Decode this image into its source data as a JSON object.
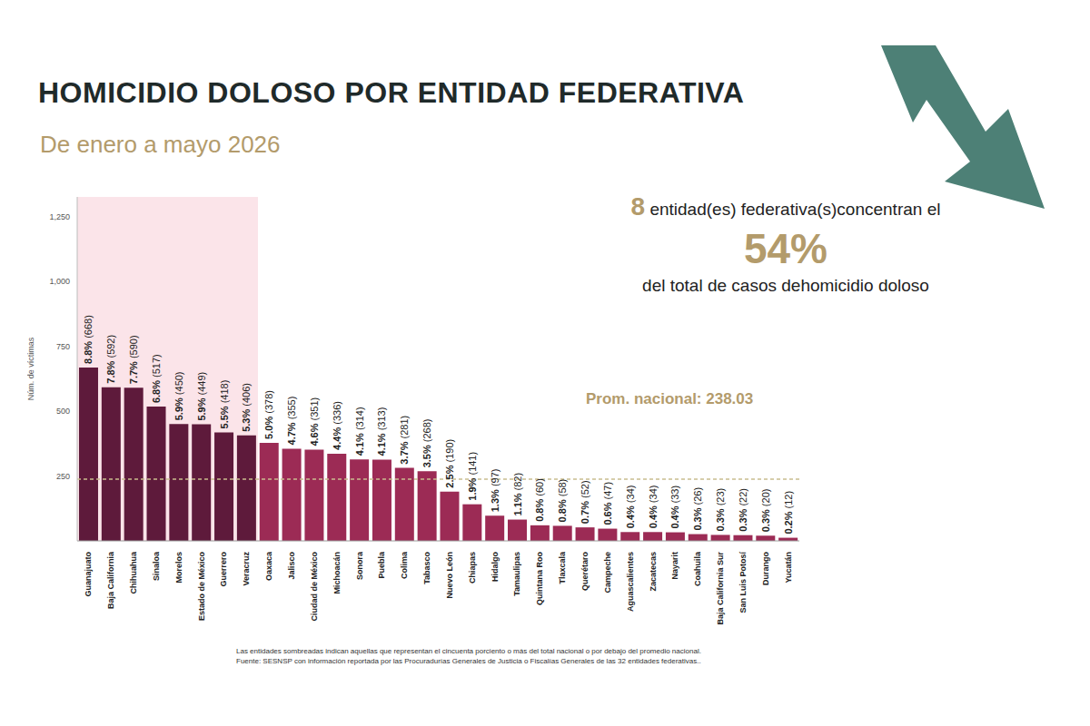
{
  "chart_data": {
    "type": "bar",
    "title": "HOMICIDIO DOLOSO POR ENTIDAD FEDERATIVA",
    "subtitle": "De enero a mayo 2026",
    "y_label": "Núm. de víctimas",
    "categories": [
      "Guanajuato",
      "Baja California",
      "Chihuahua",
      "Sinaloa",
      "Morelos",
      "Estado de México",
      "Guerrero",
      "Veracruz",
      "Oaxaca",
      "Jalisco",
      "Ciudad de México",
      "Michoacán",
      "Sonora",
      "Puebla",
      "Colima",
      "Tabasco",
      "Nuevo León",
      "Chiapas",
      "Hidalgo",
      "Tamaulipas",
      "Quintana Roo",
      "Tlaxcala",
      "Querétaro",
      "Campeche",
      "Aguascalientes",
      "Zacatecas",
      "Nayarit",
      "Coahuila",
      "Baja California Sur",
      "San Luis Potosí",
      "Durango",
      "Yucatán"
    ],
    "values": [
      668,
      592,
      590,
      517,
      450,
      449,
      418,
      406,
      378,
      355,
      351,
      336,
      314,
      313,
      281,
      268,
      190,
      141,
      97,
      82,
      60,
      58,
      52,
      47,
      34,
      34,
      33,
      26,
      23,
      22,
      20,
      12
    ],
    "value_labels": [
      "8.8% (668)",
      "7.8% (592)",
      "7.7% (590)",
      "6.8% (517)",
      "5.9% (450)",
      "5.9% (449)",
      "5.5% (418)",
      "5.3% (406)",
      "5.0% (378)",
      "4.7% (355)",
      "4.6% (351)",
      "4.4% (336)",
      "4.1% (314)",
      "4.1% (313)",
      "3.7% (281)",
      "3.5% (268)",
      "2.5% (190)",
      "1.9% (141)",
      "1.3% (97)",
      "1.1% (82)",
      "0.8% (60)",
      "0.8% (58)",
      "0.7% (52)",
      "0.6% (47)",
      "0.4% (34)",
      "0.4% (34)",
      "0.4% (33)",
      "0.3% (26)",
      "0.3% (23)",
      "0.3% (22)",
      "0.3% (20)",
      "0.2% (12)"
    ],
    "colors": [
      "#5e1a3b",
      "#5e1a3b",
      "#5e1a3b",
      "#5e1a3b",
      "#5e1a3b",
      "#5e1a3b",
      "#5e1a3b",
      "#5e1a3b",
      "#9c2b55",
      "#9c2b55",
      "#9c2b55",
      "#9c2b55",
      "#9c2b55",
      "#9c2b55",
      "#9c2b55",
      "#9c2b55",
      "#9c2b55",
      "#9c2b55",
      "#9c2b55",
      "#9c2b55",
      "#9c2b55",
      "#9c2b55",
      "#9c2b55",
      "#9c2b55",
      "#9c2b55",
      "#9c2b55",
      "#9c2b55",
      "#9c2b55",
      "#9c2b55",
      "#9c2b55",
      "#9c2b55",
      "#9c2b55"
    ],
    "ylim": [
      0,
      1325
    ],
    "yticks": [
      250,
      500,
      750,
      {
        "value": 1000,
        "label": "1,000"
      },
      {
        "value": 1250,
        "label": "1,250"
      }
    ],
    "grid": false,
    "data_labels": true,
    "average": {
      "value": 238.03,
      "label": "Prom. nacional: 238.03"
    },
    "summary": {
      "count": 8,
      "text": "entidad(es) federativa(s)concentran el",
      "share": "54%",
      "text_end": "del total de casos dehomicidio doloso"
    },
    "notes": [
      "Las entidades sombreadas indican aquellas que representan el cincuenta porciento o más del total nacional o por debajo del promedio nacional.",
      "Fuente: SESNSP con información reportada por las Procuradurías Generales de Justicia o Fiscalías Generales de las 32 entidades federativas.."
    ]
  }
}
